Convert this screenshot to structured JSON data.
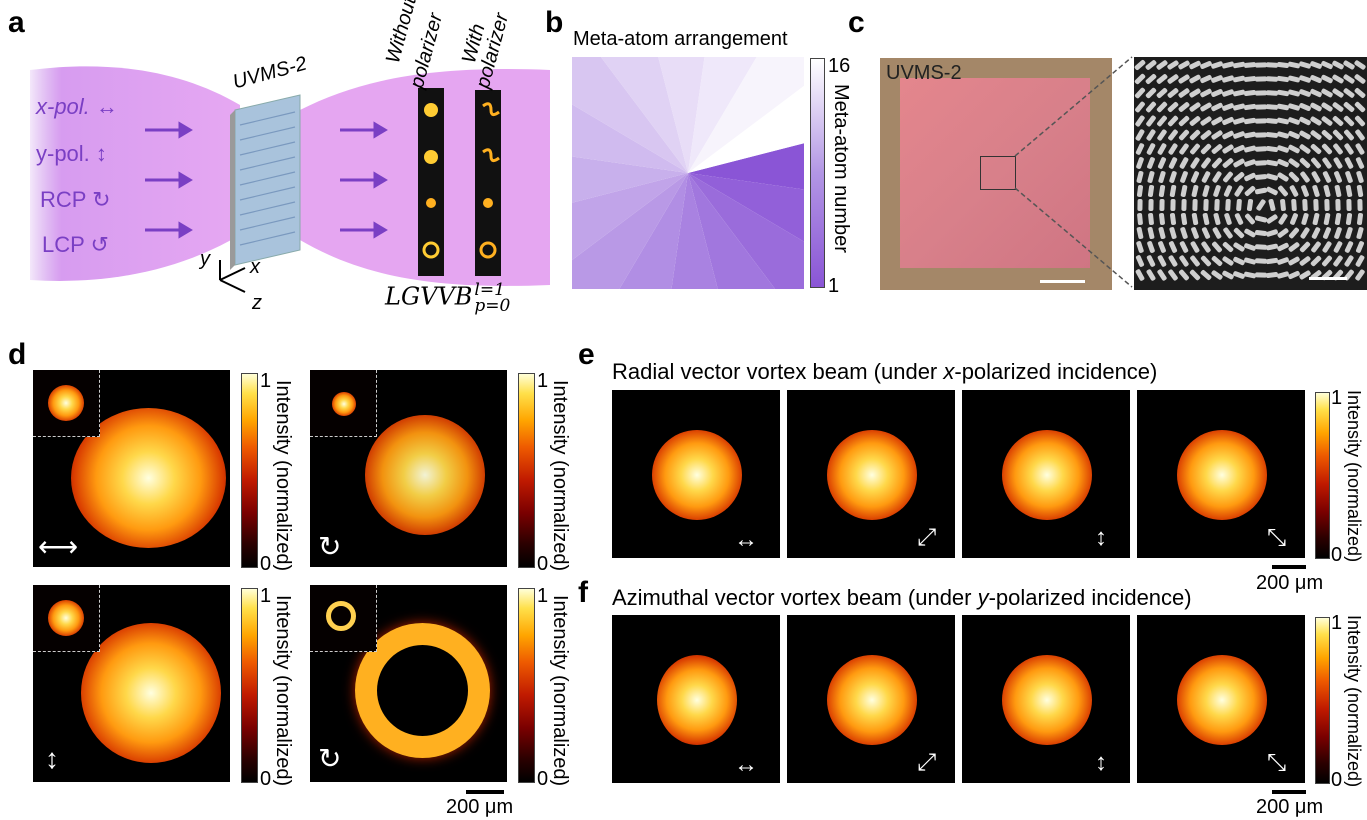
{
  "panels": {
    "a": "a",
    "b": "b",
    "c": "c",
    "d": "d",
    "e": "e",
    "f": "f"
  },
  "panel_a": {
    "device": "UVMS-2",
    "inputs": [
      "x-pol.",
      "y-pol.",
      "RCP",
      "LCP"
    ],
    "col_without": "Without",
    "col_polarizer1": "polarizer",
    "col_with": "With",
    "col_polarizer2": "polarizer",
    "axes": {
      "y": "y",
      "x": "x",
      "z": "z"
    },
    "beam_label": "LGVVB",
    "beam_sup": "l=1",
    "beam_sub": "p=0"
  },
  "panel_b": {
    "title": "Meta-atom arrangement",
    "colorbar_label": "Meta-atom number",
    "cb_max": "16",
    "cb_min": "1"
  },
  "panel_c": {
    "label": "UVMS-2"
  },
  "panel_d": {
    "cb_label": "Intensity (normalized)",
    "cb_max": "1",
    "cb_min": "0",
    "scale": "200 μm",
    "polarizations": [
      "horizontal",
      "right-circular",
      "vertical",
      "right-circular"
    ]
  },
  "panel_e": {
    "title": "Radial vector vortex beam (under x-polarized incidence)",
    "cb_label": "Intensity (normalized)",
    "cb_max": "1",
    "cb_min": "0",
    "scale": "200 μm",
    "analyzers": [
      "↔",
      "⤢",
      "↕",
      "⤡"
    ]
  },
  "panel_f": {
    "title": "Azimuthal vector vortex beam (under y-polarized incidence)",
    "cb_label": "Intensity (normalized)",
    "cb_max": "1",
    "cb_min": "0",
    "scale": "200 μm",
    "analyzers": [
      "↔",
      "⤢",
      "↕",
      "⤡"
    ]
  },
  "colors": {
    "purple": "#7a3fc4",
    "beam": "#e8b6f2"
  }
}
